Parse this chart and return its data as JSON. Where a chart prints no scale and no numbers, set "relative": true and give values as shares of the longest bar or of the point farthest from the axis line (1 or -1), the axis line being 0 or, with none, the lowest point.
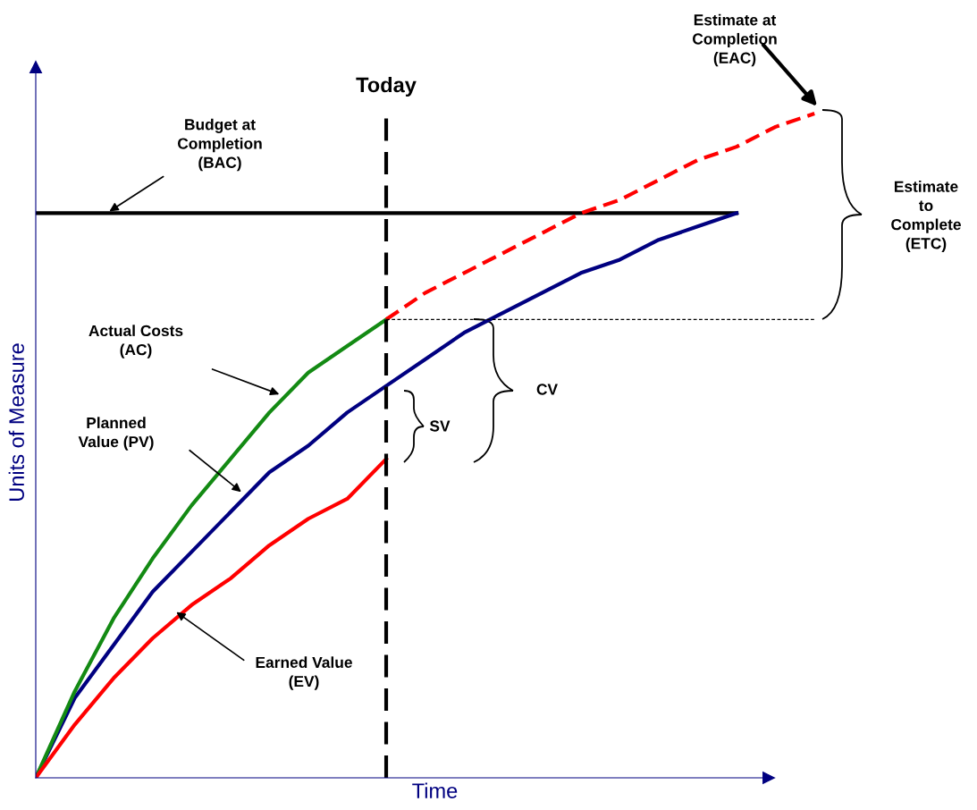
{
  "chart_data": {
    "type": "line",
    "relative": true,
    "xlabel": "Time",
    "ylabel": "Units of Measure",
    "categories": [
      null,
      null,
      null,
      null,
      null,
      null,
      null,
      null,
      null,
      null,
      null,
      null,
      null,
      null,
      null,
      null,
      null,
      null,
      null,
      null,
      null
    ],
    "series": [
      {
        "color": "#000000",
        "line_style": "solid",
        "values": [
          0.85,
          0.85,
          0.85,
          0.85,
          0.85,
          0.85,
          0.85,
          0.85,
          0.85,
          0.85,
          0.85,
          0.85,
          0.85,
          0.85,
          0.85,
          0.85,
          0.85,
          0.85,
          0.85,
          null,
          null
        ]
      },
      {
        "color": "#000080",
        "line_style": "solid",
        "values": [
          0,
          0.12,
          0.2,
          0.28,
          0.34,
          0.4,
          0.46,
          0.5,
          0.55,
          0.59,
          0.63,
          0.67,
          0.7,
          0.73,
          0.76,
          0.78,
          0.81,
          0.83,
          0.85,
          null,
          null
        ]
      },
      {
        "color": "#138a13",
        "line_style": "solid",
        "values": [
          0,
          0.13,
          0.24,
          0.33,
          0.41,
          0.48,
          0.55,
          0.61,
          0.65,
          0.69,
          null,
          null,
          null,
          null,
          null,
          null,
          null,
          null,
          null,
          null,
          null
        ]
      },
      {
        "color": "#ff0000",
        "line_style": "solid",
        "values": [
          0,
          0.08,
          0.15,
          0.21,
          0.26,
          0.3,
          0.35,
          0.39,
          0.42,
          0.48,
          null,
          null,
          null,
          null,
          null,
          null,
          null,
          null,
          null,
          null,
          null
        ]
      },
      {
        "color": "#ff0000",
        "line_style": "dashed",
        "values": [
          null,
          null,
          null,
          null,
          null,
          null,
          null,
          null,
          null,
          0.69,
          0.73,
          0.76,
          0.79,
          0.82,
          0.85,
          0.87,
          0.9,
          0.93,
          0.95,
          0.98,
          1.0
        ]
      },
      {
        "color": "#000000",
        "line_style": "dotted",
        "values": [
          null,
          null,
          null,
          null,
          null,
          null,
          null,
          null,
          null,
          0.69,
          0.69,
          0.69,
          0.69,
          0.69,
          0.69,
          0.69,
          0.69,
          0.69,
          0.69,
          0.69,
          0.69
        ]
      }
    ],
    "annotations": [
      "Today",
      "Estimate at\nCompletion\n(EAC)",
      "Budget at\nCompletion\n(BAC)",
      "Estimate\nto\nComplete\n(ETC)",
      "Actual Costs\n(AC)",
      "Planned\nValue (PV)",
      "Earned Value\n(EV)",
      "SV",
      "CV"
    ],
    "marker": "none"
  }
}
